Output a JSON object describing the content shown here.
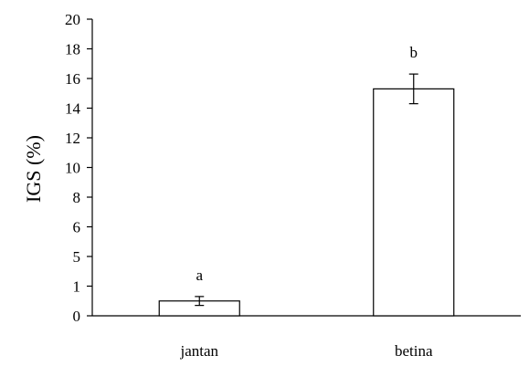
{
  "chart_data": {
    "type": "bar",
    "categories": [
      "jantan",
      "betina"
    ],
    "values": [
      1.0,
      15.3
    ],
    "errors": [
      0.3,
      1.0
    ],
    "data_labels": [
      "a",
      "b"
    ],
    "ylabel": "IGS (%)",
    "xlabel": "",
    "yticks": [
      0,
      1,
      5,
      6,
      8,
      10,
      12,
      14,
      16,
      18,
      20
    ],
    "ylim": [
      0,
      20
    ],
    "grid": false,
    "bar_fill": "#ffffff",
    "bar_stroke": "#000000"
  }
}
